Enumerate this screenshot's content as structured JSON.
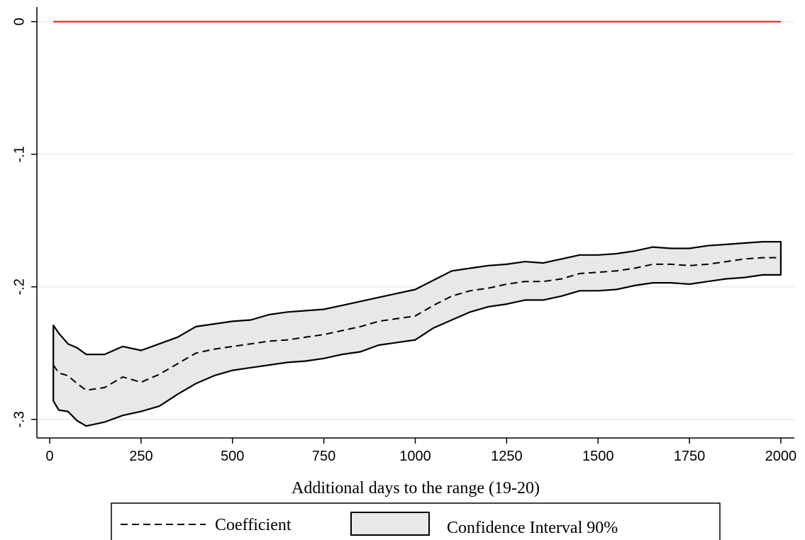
{
  "chart_data": {
    "type": "line_band",
    "x_label": "Additional days to the range (19-20)",
    "x": [
      10,
      25,
      50,
      75,
      100,
      150,
      200,
      250,
      300,
      350,
      400,
      450,
      500,
      550,
      600,
      650,
      700,
      750,
      800,
      850,
      900,
      950,
      1000,
      1050,
      1100,
      1150,
      1200,
      1250,
      1300,
      1350,
      1400,
      1450,
      1500,
      1550,
      1600,
      1650,
      1700,
      1750,
      1800,
      1850,
      1900,
      1950,
      2000
    ],
    "series": [
      {
        "name": "Coefficient",
        "color": "#000000",
        "values": [
          -0.259,
          -0.265,
          -0.267,
          -0.273,
          -0.278,
          -0.276,
          -0.268,
          -0.272,
          -0.266,
          -0.258,
          -0.25,
          -0.247,
          -0.245,
          -0.243,
          -0.241,
          -0.24,
          -0.238,
          -0.236,
          -0.233,
          -0.23,
          -0.226,
          -0.224,
          -0.222,
          -0.214,
          -0.207,
          -0.203,
          -0.201,
          -0.198,
          -0.196,
          -0.196,
          -0.194,
          -0.19,
          -0.189,
          -0.188,
          -0.186,
          -0.183,
          -0.183,
          -0.184,
          -0.183,
          -0.181,
          -0.179,
          -0.178,
          -0.178
        ]
      }
    ],
    "band": {
      "name": "Confidence Interval 90%",
      "color": "#e8e8e8",
      "upper": [
        -0.229,
        -0.235,
        -0.243,
        -0.246,
        -0.251,
        -0.251,
        -0.245,
        -0.248,
        -0.243,
        -0.238,
        -0.23,
        -0.228,
        -0.226,
        -0.225,
        -0.221,
        -0.219,
        -0.218,
        -0.217,
        -0.214,
        -0.211,
        -0.208,
        -0.205,
        -0.202,
        -0.195,
        -0.188,
        -0.186,
        -0.184,
        -0.183,
        -0.181,
        -0.182,
        -0.179,
        -0.176,
        -0.176,
        -0.175,
        -0.173,
        -0.17,
        -0.171,
        -0.171,
        -0.169,
        -0.168,
        -0.167,
        -0.166,
        -0.166
      ],
      "lower": [
        -0.286,
        -0.293,
        -0.294,
        -0.301,
        -0.305,
        -0.302,
        -0.297,
        -0.294,
        -0.29,
        -0.281,
        -0.273,
        -0.267,
        -0.263,
        -0.261,
        -0.259,
        -0.257,
        -0.256,
        -0.254,
        -0.251,
        -0.249,
        -0.244,
        -0.242,
        -0.24,
        -0.231,
        -0.225,
        -0.219,
        -0.215,
        -0.213,
        -0.21,
        -0.21,
        -0.207,
        -0.203,
        -0.203,
        -0.202,
        -0.199,
        -0.197,
        -0.197,
        -0.198,
        -0.196,
        -0.194,
        -0.193,
        -0.191,
        -0.191
      ]
    },
    "hline": {
      "y": 0,
      "color": "#e0201b"
    },
    "xlim": [
      -35,
      2037
    ],
    "ylim": [
      -0.314,
      0.011
    ],
    "xticks": [
      0,
      250,
      500,
      750,
      1000,
      1250,
      1500,
      1750,
      2000
    ],
    "yticks": [
      0,
      {
        "value": -0.1,
        "label": "-.1"
      },
      {
        "value": -0.2,
        "label": "-.2"
      },
      {
        "value": -0.3,
        "label": "-.3"
      }
    ],
    "grid": true,
    "legend": "bottom"
  }
}
